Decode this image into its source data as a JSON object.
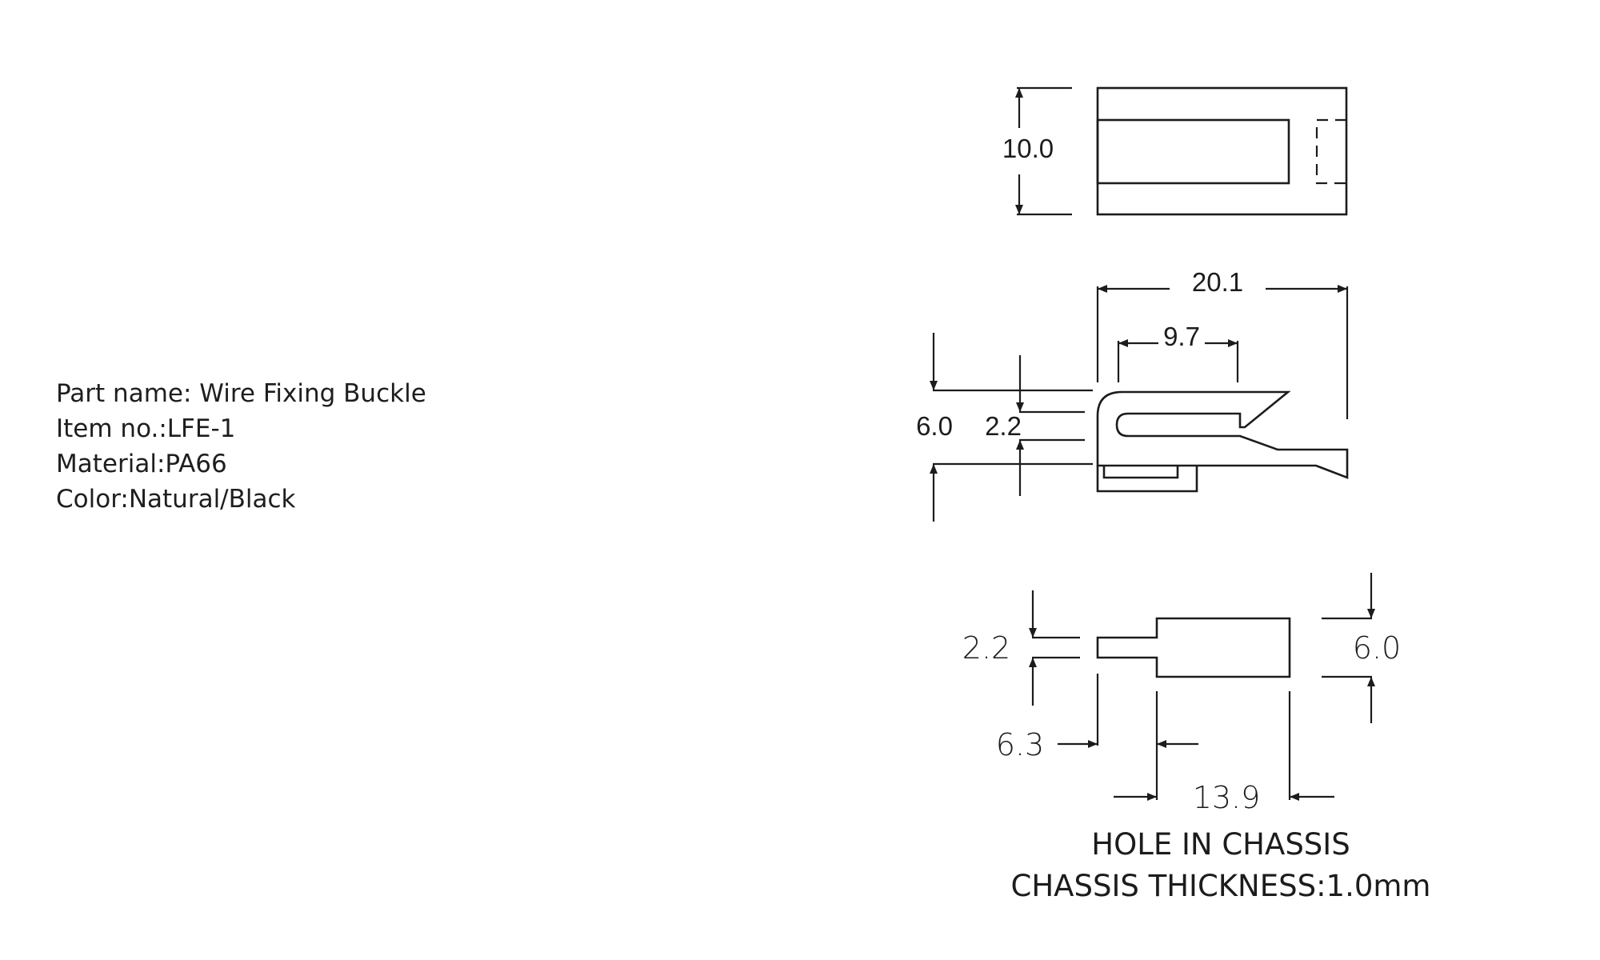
{
  "spec": {
    "part_name": "Part name: Wire Fixing Buckle",
    "item_no": "Item no.:LFE-1",
    "material": "Material:PA66",
    "color": "Color:Natural/Black"
  },
  "dimensions": {
    "top_height": "10.0",
    "side_length": "20.1",
    "side_slot": "9.7",
    "side_height": "6.0",
    "side_gap": "2.2",
    "hole_small_height": "2.2",
    "hole_large_height": "6.0",
    "hole_small_width": "6.3",
    "hole_total_width": "13.9"
  },
  "notes": {
    "hole": "HOLE IN CHASSIS",
    "thickness": "CHASSIS THICKNESS:1.0mm"
  }
}
